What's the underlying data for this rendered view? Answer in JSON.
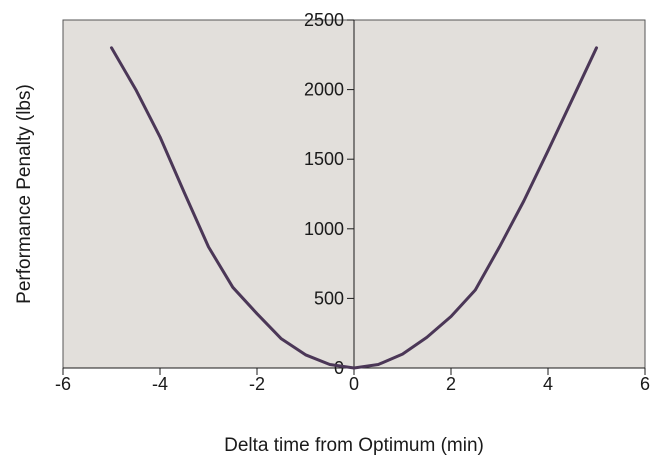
{
  "chart_data": {
    "type": "line",
    "title": "",
    "xlabel": "Delta time from Optimum (min)",
    "ylabel": "Performance Penalty (lbs)",
    "xlim": [
      -6,
      6
    ],
    "ylim": [
      0,
      2500
    ],
    "x_ticks": [
      -6,
      -4,
      -2,
      0,
      2,
      4,
      6
    ],
    "x_tick_labels": [
      "-6",
      "-4",
      "-2",
      "0",
      "2",
      "4",
      "6"
    ],
    "y_ticks": [
      0,
      500,
      1000,
      1500,
      2000,
      2500
    ],
    "y_tick_labels": [
      "0",
      "500",
      "1000",
      "1500",
      "2000",
      "2500"
    ],
    "grid": false,
    "legend": "none",
    "colors": {
      "plot_background": "#e2dfdb",
      "line": "#4b3757",
      "axis": "#1a1a1a"
    },
    "series": [
      {
        "x": [
          -5,
          -4.5,
          -4,
          -3.5,
          -3,
          -2.5,
          -2,
          -1.5,
          -1,
          -0.5,
          0,
          0.5,
          1,
          1.5,
          2,
          2.5,
          3,
          3.5,
          4,
          4.5,
          5
        ],
        "y": [
          2300,
          2000,
          1660,
          1260,
          870,
          580,
          390,
          210,
          95,
          25,
          0,
          25,
          100,
          220,
          370,
          560,
          870,
          1200,
          1560,
          1930,
          2300
        ]
      }
    ]
  }
}
